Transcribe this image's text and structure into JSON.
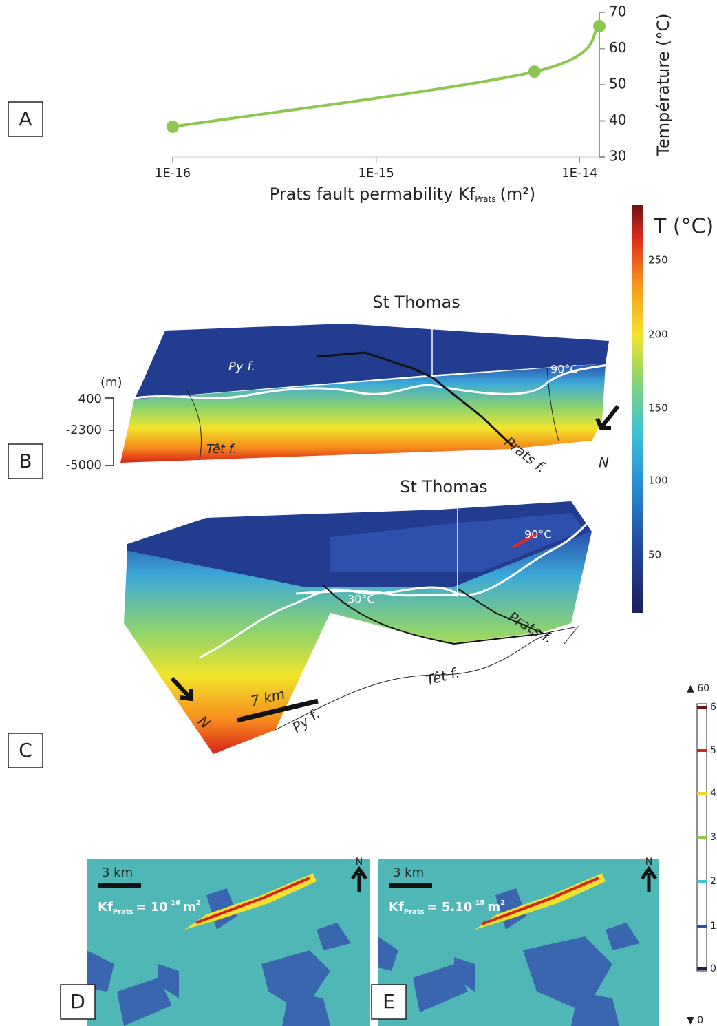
{
  "chart_data": {
    "type": "line",
    "xlabel": "Prats fault permability Kf",
    "xlabel_sub": "Prats",
    "xlabel_unit": "(m²)",
    "ylabel": "Température (°C)",
    "x": [
      1e-16,
      6e-15,
      1.25e-14
    ],
    "series": [
      {
        "color": "#8cc751",
        "values": [
          38.4,
          53.6,
          66.2
        ]
      }
    ],
    "xlim": [
      1e-16,
      1.25e-14
    ],
    "xscale": "log",
    "xticks": [
      {
        "value": 1e-16,
        "label": "1E-16"
      },
      {
        "value": 1e-15,
        "label": "1E-15"
      },
      {
        "value": 1e-14,
        "label": "1E-14"
      }
    ],
    "ylim": [
      30,
      70
    ],
    "yticks": [
      30,
      40,
      50,
      60,
      70
    ],
    "yaxis_side": "right"
  },
  "panel_labels": [
    "A",
    "B",
    "C",
    "D",
    "E"
  ],
  "panel_b": {
    "site": "St Thomas",
    "faults": [
      "Py f.",
      "Têt f.",
      "Prats f."
    ],
    "isotherm": "90°C",
    "north": "N",
    "depth_unit": "(m)",
    "depths": [
      "400",
      "-2300",
      "-5000"
    ]
  },
  "panel_c": {
    "site": "St Thomas",
    "isotherms": [
      "30°C",
      "90°C"
    ],
    "faults": [
      "Prats f.",
      "Têt f.",
      "Py f."
    ],
    "north": "N",
    "scale": "7 km"
  },
  "panel_d": {
    "scale": "3 km",
    "north": "N",
    "kf": "Kf",
    "kf_sub": "Prats",
    "kf_eq": "= 10",
    "kf_exp": "-16",
    "kf_unit": "m",
    "kf_unit_exp": "2"
  },
  "panel_e": {
    "scale": "3 km",
    "north": "N",
    "kf": "Kf",
    "kf_sub": "Prats",
    "kf_eq": "= 5.10",
    "kf_exp": "-15",
    "kf_unit": "m",
    "kf_unit_exp": "2"
  },
  "temperature_bar": {
    "title": "T (°C)",
    "ticks": [
      "250",
      "200",
      "150",
      "100",
      "50"
    ]
  },
  "second_bar": {
    "max": "▲ 60",
    "ticks": [
      "6",
      "5",
      "4",
      "3",
      "2",
      "1",
      "0"
    ],
    "min": "▼ 0"
  }
}
